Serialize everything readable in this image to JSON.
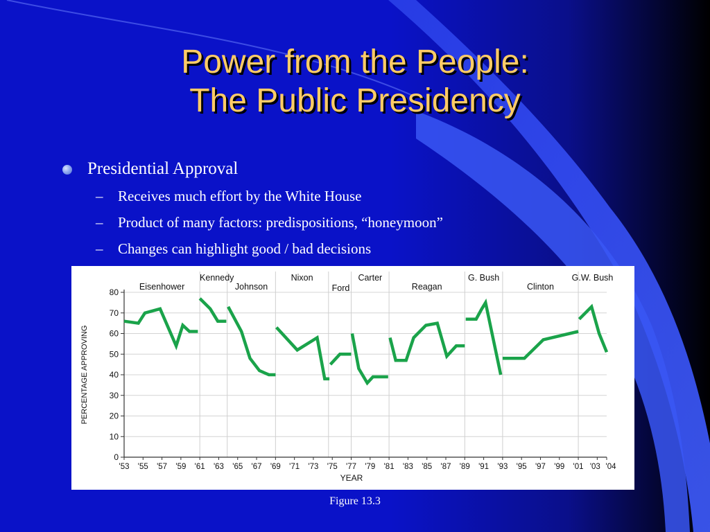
{
  "slide": {
    "title_line1": "Power from the People:",
    "title_line2": "The Public Presidency",
    "bullet": "Presidential Approval",
    "sub_bullets": [
      "Receives much effort by the White House",
      "Product of many factors: predispositions, “honeymoon”",
      "Changes can highlight good / bad decisions"
    ],
    "caption": "Figure 13.3"
  },
  "colors": {
    "background": "#0a12c8",
    "title": "#ffcc66",
    "text": "#ffffff",
    "line": "#1aa34a"
  },
  "chart_data": {
    "type": "line",
    "title": "",
    "xlabel": "YEAR",
    "ylabel": "PERCENTAGE APPROVING",
    "ylim": [
      0,
      80
    ],
    "xlim": [
      1953,
      2004
    ],
    "yticks": [
      0,
      10,
      20,
      30,
      40,
      50,
      60,
      70,
      80
    ],
    "xtick_labels": [
      "'53",
      "'55",
      "'57",
      "'59",
      "'61",
      "'63",
      "'65",
      "'67",
      "'69",
      "'71",
      "'73",
      "'75",
      "'77",
      "'79",
      "'81",
      "'83",
      "'85",
      "'87",
      "'89",
      "'91",
      "'93",
      "'95",
      "'97",
      "'99",
      "'01",
      "'03",
      "'04"
    ],
    "grid": "vertical lines at presidential transitions",
    "presidents": [
      {
        "name": "Eisenhower",
        "start": 1953
      },
      {
        "name": "Kennedy",
        "start": 1961
      },
      {
        "name": "Johnson",
        "start": 1963.9
      },
      {
        "name": "Nixon",
        "start": 1969
      },
      {
        "name": "Ford",
        "start": 1974.6
      },
      {
        "name": "Carter",
        "start": 1977
      },
      {
        "name": "Reagan",
        "start": 1981
      },
      {
        "name": "G. Bush",
        "start": 1989
      },
      {
        "name": "Clinton",
        "start": 1993
      },
      {
        "name": "G.W. Bush",
        "start": 2001
      }
    ],
    "series": [
      {
        "x": [
          1953,
          1954.5,
          1955.2,
          1956.8,
          1958.5,
          1959.2,
          1959.9,
          1960.8
        ],
        "y": [
          66,
          65,
          70,
          72,
          54,
          64,
          61,
          61
        ]
      },
      {
        "x": [
          1961,
          1962.1,
          1962.9,
          1963.8
        ],
        "y": [
          77,
          72,
          66,
          66
        ]
      },
      {
        "x": [
          1964,
          1965.4,
          1966.3,
          1967.3,
          1968.3,
          1969
        ],
        "y": [
          73,
          61,
          48,
          42,
          40,
          40
        ]
      },
      {
        "x": [
          1969.1,
          1971.3,
          1973.4,
          1974.2,
          1974.7
        ],
        "y": [
          63,
          52,
          58,
          38,
          38
        ]
      },
      {
        "x": [
          1974.8,
          1975.8,
          1976.6,
          1977
        ],
        "y": [
          45,
          50,
          50,
          50
        ]
      },
      {
        "x": [
          1977.1,
          1977.8,
          1978.7,
          1979.3,
          1980.9
        ],
        "y": [
          60,
          43,
          36,
          39,
          39
        ]
      },
      {
        "x": [
          1981.1,
          1981.7,
          1982.8,
          1983.6,
          1984.9,
          1986.1,
          1987.1,
          1988.1,
          1989
        ],
        "y": [
          58,
          47,
          47,
          58,
          64,
          65,
          49,
          54,
          54
        ]
      },
      {
        "x": [
          1989.1,
          1990.2,
          1990.8,
          1991.2,
          1992.8
        ],
        "y": [
          67,
          67,
          72,
          75,
          40
        ]
      },
      {
        "x": [
          1993,
          1995.3,
          1997.3,
          2001
        ],
        "y": [
          48,
          48,
          57,
          61
        ]
      },
      {
        "x": [
          2001.1,
          2002.4,
          2003.2,
          2004
        ],
        "y": [
          67,
          73,
          60,
          51
        ]
      }
    ]
  }
}
